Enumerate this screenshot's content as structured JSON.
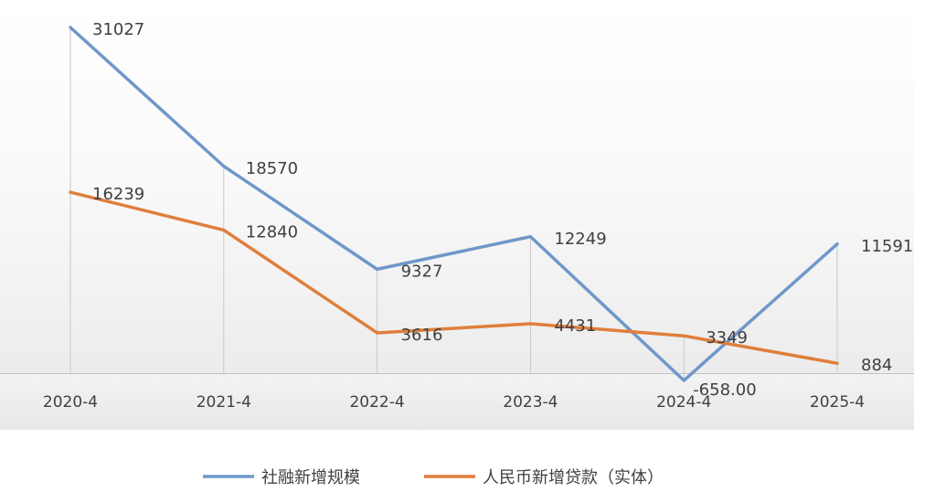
{
  "chart_data": {
    "type": "line",
    "categories": [
      "2020-4",
      "2021-4",
      "2022-4",
      "2023-4",
      "2024-4",
      "2025-4"
    ],
    "series": [
      {
        "name": "社融新增规模",
        "color": "#6f98c9",
        "values": [
          31027,
          18570,
          9327,
          12249,
          -658,
          11591
        ],
        "labels": [
          "31027",
          "18570",
          "9327",
          "12249",
          "-658.00",
          "11591"
        ]
      },
      {
        "name": "人民币新增贷款（实体）",
        "color": "#e07e3c",
        "values": [
          16239,
          12840,
          3616,
          4431,
          3349,
          884
        ],
        "labels": [
          "16239",
          "12840",
          "3616",
          "4431",
          "3349",
          "884"
        ]
      }
    ],
    "ylim": [
      -800,
      32000
    ],
    "grid": "vertical-drop-lines",
    "legend_position": "bottom"
  }
}
